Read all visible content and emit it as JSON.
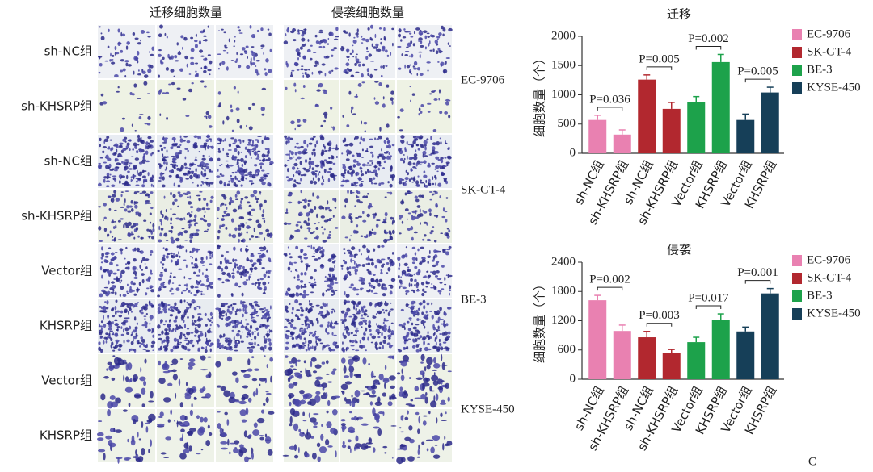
{
  "image_panel": {
    "headers": [
      "迁移细胞数量",
      "侵袭细胞数量"
    ],
    "row_labels": [
      "sh-NC组",
      "sh-KHSRP组",
      "sh-NC组",
      "sh-KHSRP组",
      "Vector组",
      "KHSRP组",
      "Vector组",
      "KHSRP组"
    ],
    "cell_lines": [
      "EC-9706",
      "SK-GT-4",
      "BE-3",
      "KYSE-450"
    ]
  },
  "panel_label": "C",
  "chart_data": [
    {
      "type": "bar",
      "title": "迁移",
      "y_label": "细胞数量（个）",
      "categories": [
        "sh-NC组",
        "sh-KHSRP组",
        "sh-NC组",
        "sh-KHSRP组",
        "Vector组",
        "KHSRP组",
        "Vector组",
        "KHSRP组"
      ],
      "ylim": [
        0,
        2000
      ],
      "yticks": [
        0,
        500,
        1000,
        1500,
        2000
      ],
      "series": [
        {
          "name": "EC-9706",
          "color": "#e981b1",
          "values": [
            570,
            320,
            null,
            null,
            null,
            null,
            null,
            null
          ],
          "errors": [
            80,
            80,
            null,
            null,
            null,
            null,
            null,
            null
          ],
          "p_label": "P=0.036"
        },
        {
          "name": "SK-GT-4",
          "color": "#b2282f",
          "values": [
            null,
            null,
            1260,
            760,
            null,
            null,
            null,
            null
          ],
          "errors": [
            null,
            null,
            80,
            110,
            null,
            null,
            null,
            null
          ],
          "p_label": "P=0.005"
        },
        {
          "name": "BE-3",
          "color": "#1da24b",
          "values": [
            null,
            null,
            null,
            null,
            870,
            1560,
            null,
            null
          ],
          "errors": [
            null,
            null,
            null,
            null,
            100,
            130,
            null,
            null
          ],
          "p_label": "P=0.002"
        },
        {
          "name": "KYSE-450",
          "color": "#163f58",
          "values": [
            null,
            null,
            null,
            null,
            null,
            null,
            570,
            1040
          ],
          "errors": [
            null,
            null,
            null,
            null,
            null,
            null,
            100,
            90
          ],
          "p_label": "P=0.005"
        }
      ]
    },
    {
      "type": "bar",
      "title": "侵袭",
      "y_label": "细胞数量（个）",
      "categories": [
        "sh-NC组",
        "sh-KHSRP组",
        "sh-NC组",
        "sh-KHSRP组",
        "Vector组",
        "KHSRP组",
        "Vector组",
        "KHSRP组"
      ],
      "ylim": [
        0,
        2400
      ],
      "yticks": [
        0,
        600,
        1200,
        1800,
        2400
      ],
      "series": [
        {
          "name": "EC-9706",
          "color": "#e981b1",
          "values": [
            1620,
            990,
            null,
            null,
            null,
            null,
            null,
            null
          ],
          "errors": [
            100,
            120,
            null,
            null,
            null,
            null,
            null,
            null
          ],
          "p_label": "P=0.002"
        },
        {
          "name": "SK-GT-4",
          "color": "#b2282f",
          "values": [
            null,
            null,
            860,
            540,
            null,
            null,
            null,
            null
          ],
          "errors": [
            null,
            null,
            120,
            70,
            null,
            null,
            null,
            null
          ],
          "p_label": "P=0.003"
        },
        {
          "name": "BE-3",
          "color": "#1da24b",
          "values": [
            null,
            null,
            null,
            null,
            760,
            1210,
            null,
            null
          ],
          "errors": [
            null,
            null,
            null,
            null,
            100,
            130,
            null,
            null
          ],
          "p_label": "P=0.017"
        },
        {
          "name": "KYSE-450",
          "color": "#163f58",
          "values": [
            null,
            null,
            null,
            null,
            null,
            null,
            980,
            1760
          ],
          "errors": [
            null,
            null,
            null,
            null,
            null,
            null,
            90,
            100
          ],
          "p_label": "P=0.001"
        }
      ]
    }
  ]
}
